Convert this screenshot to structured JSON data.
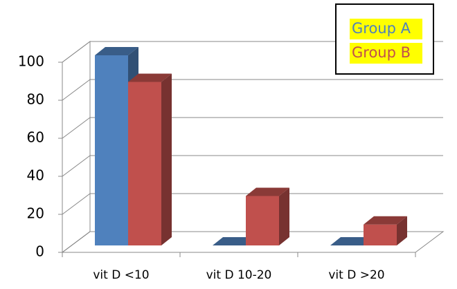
{
  "chart_data": {
    "type": "bar3d",
    "categories": [
      "vit D <10",
      "vit D 10-20",
      "vit D >20"
    ],
    "series": [
      {
        "name": "Group A",
        "color": "#4f81bd",
        "values": [
          100,
          0,
          0
        ]
      },
      {
        "name": "Group B",
        "color": "#c0504d",
        "values": [
          86,
          26,
          11
        ]
      }
    ],
    "ylim": [
      0,
      100
    ],
    "yticks": [
      0,
      20,
      40,
      60,
      80,
      100
    ],
    "grid": true,
    "legend": "top-right"
  }
}
